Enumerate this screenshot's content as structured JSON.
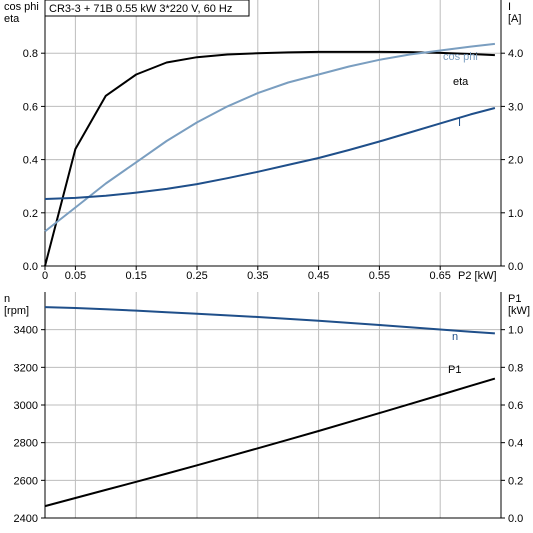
{
  "title": "CR3-3 + 71B   0.55 kW   3*220 V, 60 Hz",
  "colors": {
    "eta": "#000000",
    "cos_phi": "#7a9ec0",
    "current": "#1f4f8a",
    "speed": "#1f4f8a",
    "p1": "#000000",
    "grid": "#bdbdbd",
    "axis": "#000000"
  },
  "chart_data": [
    {
      "type": "line",
      "x": [
        0,
        0.05,
        0.1,
        0.15,
        0.2,
        0.25,
        0.3,
        0.35,
        0.4,
        0.45,
        0.5,
        0.55,
        0.6,
        0.65,
        0.7,
        0.74
      ],
      "xticks": [
        "0",
        "0.05",
        "0.15",
        "0.25",
        "0.35",
        "0.45",
        "0.55",
        "0.65"
      ],
      "xtick_values": [
        0,
        0.05,
        0.15,
        0.25,
        0.35,
        0.45,
        0.55,
        0.65
      ],
      "xlabel": "P2 [kW]",
      "xlim": [
        0,
        0.75
      ],
      "ylabel_left": [
        "cos phi",
        "eta"
      ],
      "ylim_left": [
        0,
        1.0
      ],
      "yticks_left": [
        "0.0",
        "0.2",
        "0.4",
        "0.6",
        "0.8"
      ],
      "ytick_left_values": [
        0,
        0.2,
        0.4,
        0.6,
        0.8
      ],
      "ylabel_right": [
        "I",
        "[A]"
      ],
      "ylim_right": [
        0,
        5.0
      ],
      "yticks_right": [
        "0.0",
        "1.0",
        "2.0",
        "3.0",
        "4.0"
      ],
      "ytick_right_values": [
        0,
        1,
        2,
        3,
        4
      ],
      "grid": true,
      "series": [
        {
          "name": "eta",
          "axis": "left",
          "values": [
            0.0,
            0.44,
            0.64,
            0.72,
            0.765,
            0.785,
            0.795,
            0.8,
            0.803,
            0.805,
            0.805,
            0.805,
            0.804,
            0.801,
            0.797,
            0.793
          ]
        },
        {
          "name": "cos phi",
          "axis": "left",
          "values": [
            0.13,
            0.22,
            0.31,
            0.39,
            0.47,
            0.54,
            0.6,
            0.65,
            0.69,
            0.72,
            0.75,
            0.775,
            0.795,
            0.81,
            0.825,
            0.835
          ]
        },
        {
          "name": "I",
          "axis": "right",
          "values": [
            1.26,
            1.28,
            1.32,
            1.38,
            1.45,
            1.54,
            1.65,
            1.77,
            1.9,
            2.03,
            2.18,
            2.34,
            2.51,
            2.68,
            2.85,
            2.97
          ]
        }
      ]
    },
    {
      "type": "line",
      "x": [
        0,
        0.05,
        0.1,
        0.15,
        0.2,
        0.25,
        0.3,
        0.35,
        0.4,
        0.45,
        0.5,
        0.55,
        0.6,
        0.65,
        0.7,
        0.74
      ],
      "xlim": [
        0,
        0.75
      ],
      "ylabel_left": [
        "n",
        "[rpm]"
      ],
      "ylim_left": [
        2400,
        3600
      ],
      "yticks_left": [
        "2400",
        "2600",
        "2800",
        "3000",
        "3200",
        "3400"
      ],
      "ytick_left_values": [
        2400,
        2600,
        2800,
        3000,
        3200,
        3400
      ],
      "ylabel_right": [
        "P1",
        "[kW]"
      ],
      "ylim_right": [
        0.0,
        1.2
      ],
      "yticks_right": [
        "0.0",
        "0.2",
        "0.4",
        "0.6",
        "0.8",
        "1.0"
      ],
      "ytick_right_values": [
        0,
        0.2,
        0.4,
        0.6,
        0.8,
        1.0
      ],
      "grid": true,
      "series": [
        {
          "name": "n",
          "axis": "left",
          "values": [
            3520,
            3515,
            3508,
            3501,
            3493,
            3485,
            3476,
            3467,
            3457,
            3447,
            3436,
            3425,
            3413,
            3401,
            3389,
            3380
          ]
        },
        {
          "name": "P1",
          "axis": "right",
          "values": [
            0.063,
            0.106,
            0.149,
            0.192,
            0.236,
            0.28,
            0.325,
            0.37,
            0.416,
            0.462,
            0.509,
            0.557,
            0.605,
            0.653,
            0.702,
            0.74
          ]
        }
      ]
    }
  ]
}
